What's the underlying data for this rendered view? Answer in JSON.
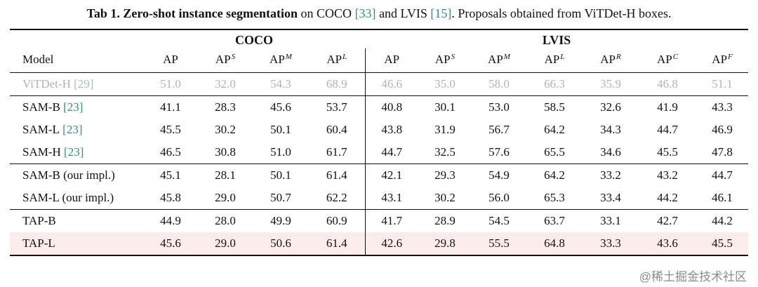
{
  "caption": {
    "bold": "Tab 1. Zero-shot instance segmentation",
    "seg1": " on COCO ",
    "cite1": "[33]",
    "seg2": " and LVIS ",
    "cite2": "[15]",
    "seg3": ". Proposals obtained from ViTDet-H boxes."
  },
  "table": {
    "model_header": "Model",
    "groups": [
      {
        "label": "COCO",
        "span": 4
      },
      {
        "label": "LVIS",
        "span": 7
      }
    ],
    "columns": [
      {
        "label": "AP",
        "sup": "",
        "key": "coco-ap"
      },
      {
        "label": "AP",
        "sup": "S",
        "key": "coco-ap-s"
      },
      {
        "label": "AP",
        "sup": "M",
        "key": "coco-ap-m"
      },
      {
        "label": "AP",
        "sup": "L",
        "key": "coco-ap-l"
      },
      {
        "label": "AP",
        "sup": "",
        "key": "lvis-ap",
        "divider": true
      },
      {
        "label": "AP",
        "sup": "S",
        "key": "lvis-ap-s"
      },
      {
        "label": "AP",
        "sup": "M",
        "key": "lvis-ap-m"
      },
      {
        "label": "AP",
        "sup": "L",
        "key": "lvis-ap-l"
      },
      {
        "label": "AP",
        "sup": "R",
        "key": "lvis-ap-r"
      },
      {
        "label": "AP",
        "sup": "C",
        "key": "lvis-ap-c"
      },
      {
        "label": "AP",
        "sup": "F",
        "key": "lvis-ap-f"
      }
    ],
    "rows": [
      {
        "model": "ViTDet-H",
        "cite": "[29]",
        "gray": true,
        "values": [
          "51.0",
          "32.0",
          "54.3",
          "68.9",
          "46.6",
          "35.0",
          "58.0",
          "66.3",
          "35.9",
          "46.8",
          "51.1"
        ]
      },
      {
        "model": "SAM-B",
        "cite": "[23]",
        "rule_above": true,
        "values": [
          "41.1",
          "28.3",
          "45.6",
          "53.7",
          "40.8",
          "30.1",
          "53.0",
          "58.5",
          "32.6",
          "41.9",
          "43.3"
        ]
      },
      {
        "model": "SAM-L",
        "cite": "[23]",
        "values": [
          "45.5",
          "30.2",
          "50.1",
          "60.4",
          "43.8",
          "31.9",
          "56.7",
          "64.2",
          "34.3",
          "44.7",
          "46.9"
        ]
      },
      {
        "model": "SAM-H",
        "cite": "[23]",
        "values": [
          "46.5",
          "30.8",
          "51.0",
          "61.7",
          "44.7",
          "32.5",
          "57.6",
          "65.5",
          "34.6",
          "45.5",
          "47.8"
        ]
      },
      {
        "model": "SAM-B (our impl.)",
        "rule_above": true,
        "values": [
          "45.1",
          "28.1",
          "50.1",
          "61.4",
          "42.1",
          "29.3",
          "54.9",
          "64.2",
          "33.2",
          "43.2",
          "44.7"
        ]
      },
      {
        "model": "SAM-L (our impl.)",
        "values": [
          "45.8",
          "29.0",
          "50.7",
          "62.2",
          "43.1",
          "30.2",
          "56.0",
          "65.3",
          "33.4",
          "44.2",
          "46.1"
        ]
      },
      {
        "model": "TAP-B",
        "rule_above": true,
        "values": [
          "44.9",
          "28.0",
          "49.9",
          "60.9",
          "41.7",
          "28.9",
          "54.5",
          "63.7",
          "33.1",
          "42.7",
          "44.2"
        ]
      },
      {
        "model": "TAP-L",
        "highlight": true,
        "values": [
          "45.6",
          "29.0",
          "50.6",
          "61.4",
          "42.6",
          "29.8",
          "55.5",
          "64.8",
          "33.3",
          "43.6",
          "45.5"
        ]
      }
    ]
  },
  "watermark": "@稀土掘金技术社区",
  "colors": {
    "citation": "#2e8f84",
    "highlight_row": "#fdecec",
    "gray_text": "#b3b3b3",
    "gray_citation": "#a3c2bd"
  }
}
